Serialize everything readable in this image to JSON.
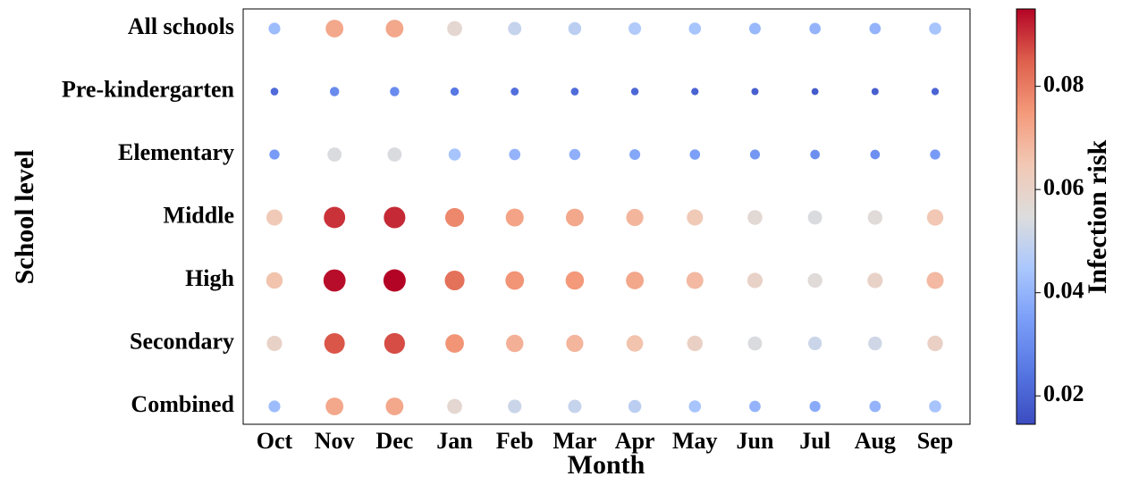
{
  "chart_data": {
    "type": "bubble_matrix",
    "xlabel": "Month",
    "ylabel": "School level",
    "colorbar_label": "Infection risk",
    "cmap": "coolwarm",
    "x_categories": [
      "Oct",
      "Nov",
      "Dec",
      "Jan",
      "Feb",
      "Mar",
      "Apr",
      "May",
      "Jun",
      "Jul",
      "Aug",
      "Sep"
    ],
    "y_categories": [
      "All schools",
      "Pre-kindergarten",
      "Elementary",
      "Middle",
      "High",
      "Secondary",
      "Combined"
    ],
    "values": [
      [
        0.042,
        0.072,
        0.072,
        0.058,
        0.05,
        0.048,
        0.046,
        0.044,
        0.041,
        0.04,
        0.04,
        0.044
      ],
      [
        0.022,
        0.03,
        0.03,
        0.025,
        0.023,
        0.022,
        0.021,
        0.02,
        0.019,
        0.018,
        0.019,
        0.02
      ],
      [
        0.034,
        0.054,
        0.054,
        0.044,
        0.04,
        0.039,
        0.037,
        0.035,
        0.033,
        0.031,
        0.031,
        0.034
      ],
      [
        0.064,
        0.09,
        0.091,
        0.078,
        0.073,
        0.072,
        0.069,
        0.064,
        0.057,
        0.054,
        0.056,
        0.065
      ],
      [
        0.066,
        0.094,
        0.095,
        0.082,
        0.076,
        0.075,
        0.072,
        0.068,
        0.06,
        0.056,
        0.06,
        0.068
      ],
      [
        0.06,
        0.086,
        0.087,
        0.076,
        0.07,
        0.069,
        0.066,
        0.061,
        0.054,
        0.051,
        0.052,
        0.061
      ],
      [
        0.042,
        0.072,
        0.072,
        0.058,
        0.051,
        0.05,
        0.048,
        0.044,
        0.04,
        0.038,
        0.04,
        0.044
      ]
    ],
    "clim": [
      0.0145,
      0.095
    ],
    "cticks": [
      0.02,
      0.04,
      0.06,
      0.08
    ]
  }
}
